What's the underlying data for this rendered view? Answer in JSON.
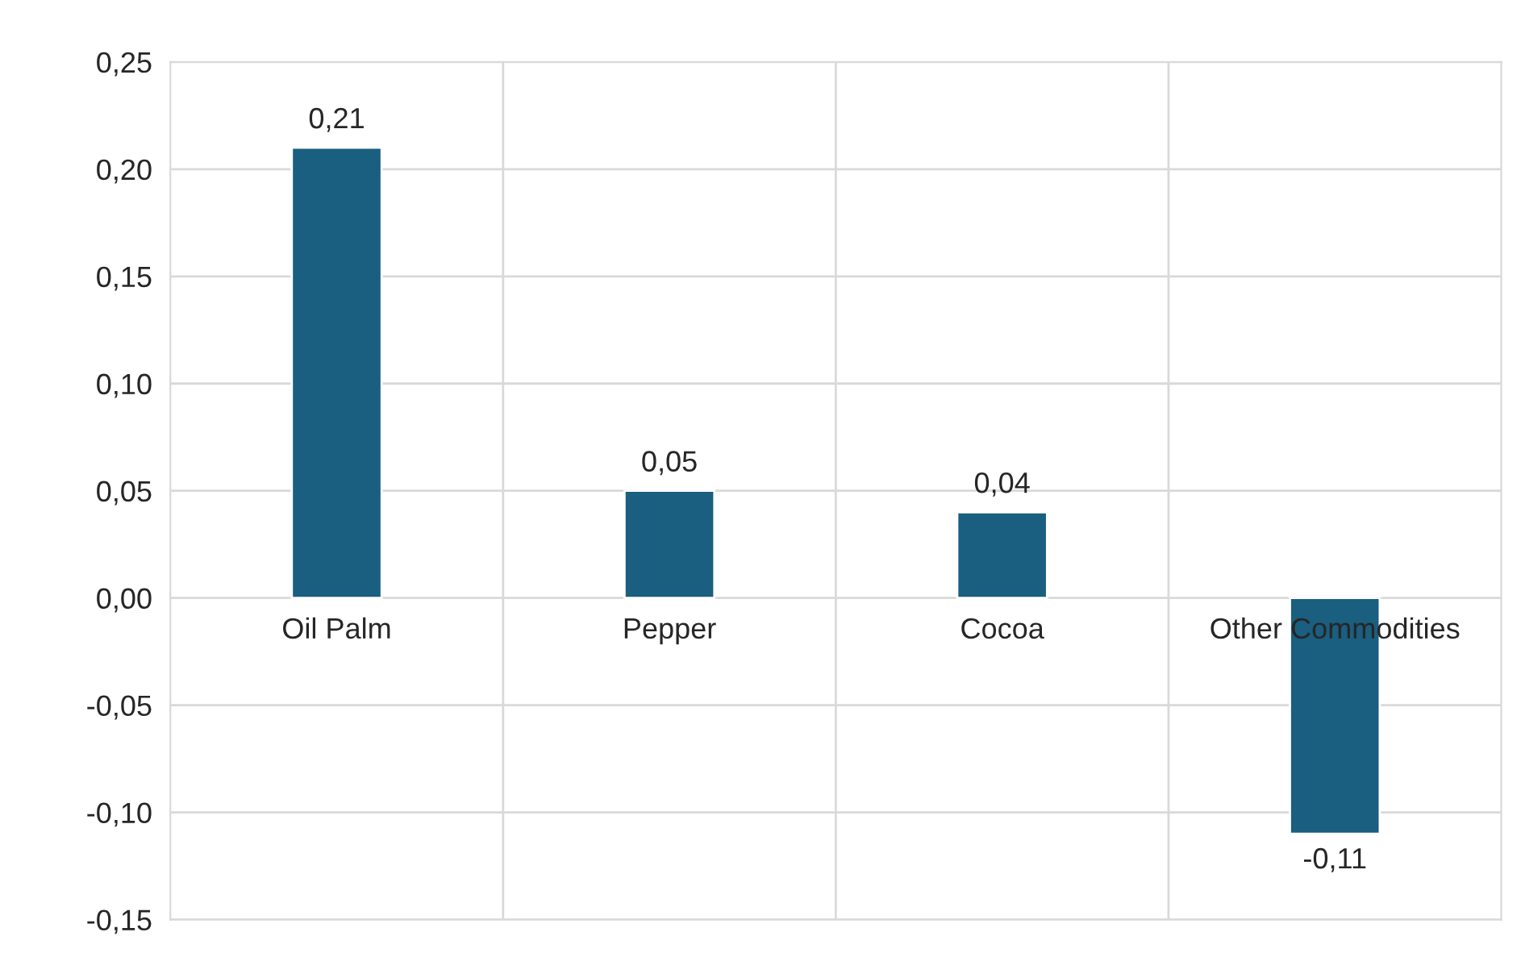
{
  "chart_data": {
    "type": "bar",
    "categories": [
      "Oil Palm",
      "Pepper",
      "Cocoa",
      "Other Commodities"
    ],
    "values": [
      0.21,
      0.05,
      0.04,
      -0.11
    ],
    "value_labels": [
      "0,21",
      "0,05",
      "0,04",
      "-0,11"
    ],
    "color": "#1a5e80",
    "ylim": [
      -0.15,
      0.25
    ],
    "yticks": [
      {
        "value": -0.15,
        "label": "-0,15"
      },
      {
        "value": -0.1,
        "label": "-0,10"
      },
      {
        "value": -0.05,
        "label": "-0,05"
      },
      {
        "value": 0,
        "label": "0,00"
      },
      {
        "value": 0.05,
        "label": "0,05"
      },
      {
        "value": 0.1,
        "label": "0,10"
      },
      {
        "value": 0.15,
        "label": "0,15"
      },
      {
        "value": 0.2,
        "label": "0,20"
      },
      {
        "value": 0.25,
        "label": "0,25"
      }
    ],
    "grid": true
  }
}
